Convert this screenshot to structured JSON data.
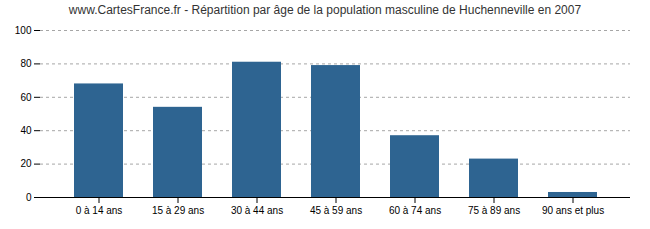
{
  "chart_data": {
    "type": "bar",
    "title": "www.CartesFrance.fr - Répartition par âge de la population masculine de Huchenneville en 2007",
    "categories": [
      "0 à 14 ans",
      "15 à 29 ans",
      "30 à 44 ans",
      "45 à 59 ans",
      "60 à 74 ans",
      "75 à 89 ans",
      "90 ans et plus"
    ],
    "values": [
      68,
      54,
      81,
      79,
      37,
      23,
      3
    ],
    "color": "#2e6491",
    "ylim": [
      0,
      100
    ],
    "yticks": [
      0,
      20,
      40,
      60,
      80,
      100
    ],
    "grid": true
  }
}
